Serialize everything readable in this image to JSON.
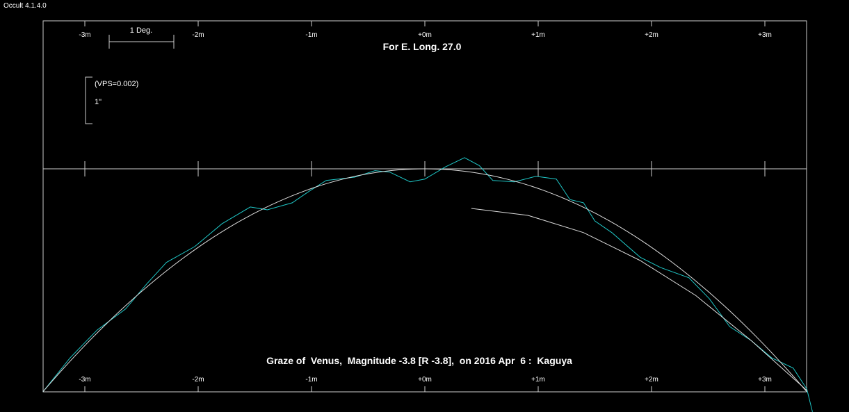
{
  "app": {
    "title": "Occult 4.1.4.0"
  },
  "chart_data": {
    "type": "line",
    "title": "For E. Long. 27.0",
    "caption": "Graze of  Venus,  Magnitude -3.8 [R -3.8],  on 2016 Apr  6 :  Kaguya",
    "x_unit": "minutes",
    "y_unit": "arcsec",
    "xlim": [
      -3.37,
      3.37
    ],
    "ylim": [
      0,
      4.79
    ],
    "x_ticks": [
      -3,
      -2,
      -1,
      0,
      1,
      2,
      3
    ],
    "x_tick_labels": [
      "-3m",
      "-2m",
      "-1m",
      "+0m",
      "+1m",
      "+2m",
      "+3m"
    ],
    "scale_bar_label": "1 Deg.",
    "vertical_scale_label": "(VPS=0.002)",
    "vertical_scale_unit": "1\"",
    "colors": {
      "profile": "#1fc8c8",
      "limb": "#dddddd",
      "axis": "#cccccc"
    },
    "series": [
      {
        "name": "limb-profile",
        "color": "#1fc8c8",
        "points": [
          [
            -3.37,
            4.79
          ],
          [
            -3.13,
            4.06
          ],
          [
            -2.89,
            3.46
          ],
          [
            -2.64,
            3.01
          ],
          [
            -2.46,
            2.49
          ],
          [
            -2.28,
            2.01
          ],
          [
            -2.03,
            1.67
          ],
          [
            -1.79,
            1.18
          ],
          [
            -1.54,
            0.82
          ],
          [
            -1.39,
            0.88
          ],
          [
            -1.17,
            0.73
          ],
          [
            -1.02,
            0.48
          ],
          [
            -0.87,
            0.25
          ],
          [
            -0.62,
            0.18
          ],
          [
            -0.44,
            0.04
          ],
          [
            -0.31,
            0.07
          ],
          [
            -0.13,
            0.28
          ],
          [
            0,
            0.22
          ],
          [
            0.18,
            -0.04
          ],
          [
            0.35,
            -0.24
          ],
          [
            0.48,
            -0.07
          ],
          [
            0.6,
            0.25
          ],
          [
            0.79,
            0.28
          ],
          [
            0.98,
            0.16
          ],
          [
            1.16,
            0.22
          ],
          [
            1.28,
            0.66
          ],
          [
            1.4,
            0.73
          ],
          [
            1.5,
            1.12
          ],
          [
            1.65,
            1.37
          ],
          [
            1.9,
            1.9
          ],
          [
            2.08,
            2.12
          ],
          [
            2.33,
            2.34
          ],
          [
            2.51,
            2.79
          ],
          [
            2.69,
            3.39
          ],
          [
            2.88,
            3.69
          ],
          [
            3.06,
            4.06
          ],
          [
            3.25,
            4.28
          ],
          [
            3.37,
            4.73
          ],
          [
            3.42,
            5.22
          ]
        ]
      },
      {
        "name": "mean-limb",
        "color": "#dddddd",
        "parabola": {
          "apex": [
            0,
            0
          ],
          "end": [
            3.37,
            4.79
          ]
        }
      },
      {
        "name": "secondary-limb",
        "color": "#dddddd",
        "points": [
          [
            0.41,
            0.85
          ],
          [
            0.91,
            1.0
          ],
          [
            1.4,
            1.37
          ],
          [
            1.9,
            1.97
          ],
          [
            2.39,
            2.72
          ],
          [
            2.88,
            3.69
          ],
          [
            3.37,
            4.76
          ]
        ]
      }
    ]
  }
}
